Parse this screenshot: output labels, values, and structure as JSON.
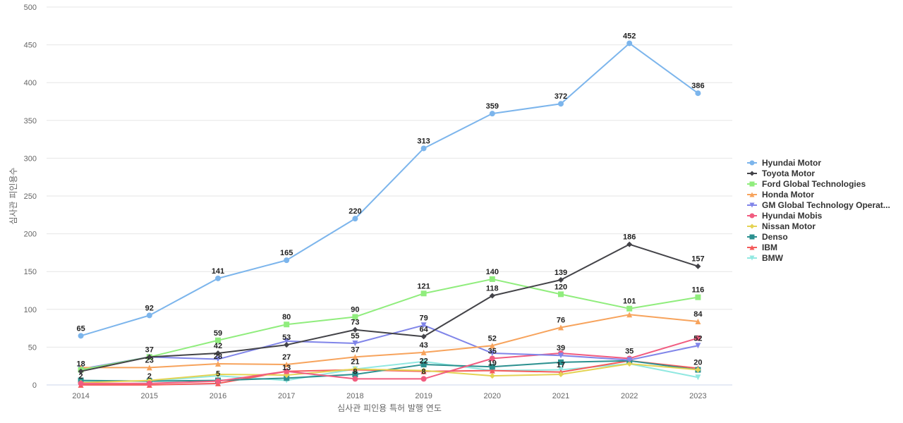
{
  "chart_data": {
    "type": "line",
    "title": "",
    "xlabel": "심사관 피인용 특허 발행 연도",
    "ylabel": "심사관 피인용수",
    "categories": [
      "2014",
      "2015",
      "2016",
      "2017",
      "2018",
      "2019",
      "2020",
      "2021",
      "2022",
      "2023"
    ],
    "ylim": [
      0,
      500
    ],
    "yticks": [
      0,
      50,
      100,
      150,
      200,
      250,
      300,
      350,
      400,
      450,
      500
    ],
    "grid": true,
    "legend_position": "right",
    "series": [
      {
        "name": "Hyundai Motor",
        "color": "#7cb5ec",
        "marker": "circle",
        "values": [
          65,
          92,
          141,
          165,
          220,
          313,
          359,
          372,
          452,
          386
        ],
        "labels": true
      },
      {
        "name": "Toyota Motor",
        "color": "#434348",
        "marker": "diamond",
        "values": [
          18,
          37,
          42,
          53,
          73,
          64,
          118,
          139,
          186,
          157
        ],
        "labels": true
      },
      {
        "name": "Ford Global Technologies",
        "color": "#90ed7d",
        "marker": "square",
        "values": [
          20,
          37,
          59,
          80,
          90,
          121,
          140,
          120,
          101,
          116
        ],
        "labels": true
      },
      {
        "name": "Honda Motor",
        "color": "#f7a35c",
        "marker": "triangle",
        "values": [
          23,
          23,
          28,
          27,
          37,
          43,
          52,
          76,
          93,
          84
        ],
        "labels": false
      },
      {
        "name": "GM Global Technology Operat...",
        "color": "#8085e9",
        "marker": "triangle-down",
        "values": [
          21,
          37,
          34,
          58,
          55,
          79,
          42,
          39,
          33,
          52
        ],
        "labels": false
      },
      {
        "name": "Hyundai Mobis",
        "color": "#f15c80",
        "marker": "circle",
        "values": [
          2,
          2,
          5,
          18,
          8,
          8,
          35,
          42,
          35,
          62
        ],
        "labels": false
      },
      {
        "name": "Nissan Motor",
        "color": "#e4d354",
        "marker": "diamond",
        "values": [
          3,
          6,
          14,
          13,
          21,
          19,
          12,
          14,
          28,
          20
        ],
        "labels": false
      },
      {
        "name": "Denso",
        "color": "#2b908f",
        "marker": "square",
        "values": [
          6,
          5,
          6,
          9,
          14,
          27,
          24,
          30,
          32,
          20
        ],
        "labels": false
      },
      {
        "name": "IBM",
        "color": "#f45b5b",
        "marker": "triangle",
        "values": [
          0,
          0,
          2,
          18,
          20,
          18,
          19,
          17,
          32,
          22
        ],
        "labels": false
      },
      {
        "name": "BMW",
        "color": "#91e8e1",
        "marker": "triangle-down",
        "values": [
          5,
          5,
          12,
          6,
          21,
          31,
          19,
          20,
          28,
          10
        ],
        "labels": false
      }
    ],
    "point_labels": [
      {
        "x": "2014",
        "value": 65
      },
      {
        "x": "2015",
        "value": 92
      },
      {
        "x": "2016",
        "value": 141
      },
      {
        "x": "2017",
        "value": 165
      },
      {
        "x": "2018",
        "value": 220
      },
      {
        "x": "2019",
        "value": 313
      },
      {
        "x": "2020",
        "value": 359
      },
      {
        "x": "2021",
        "value": 372
      },
      {
        "x": "2022",
        "value": 452
      },
      {
        "x": "2023",
        "value": 386
      },
      {
        "x": "2016",
        "value": 42
      },
      {
        "x": "2017",
        "value": 53
      },
      {
        "x": "2018",
        "value": 73
      },
      {
        "x": "2019",
        "value": 64
      },
      {
        "x": "2020",
        "value": 118
      },
      {
        "x": "2021",
        "value": 139
      },
      {
        "x": "2022",
        "value": 186
      },
      {
        "x": "2023",
        "value": 157
      },
      {
        "x": "2014",
        "value": 18
      },
      {
        "x": "2015",
        "value": 37
      },
      {
        "x": "2016",
        "value": 59
      },
      {
        "x": "2017",
        "value": 80
      },
      {
        "x": "2018",
        "value": 90
      },
      {
        "x": "2019",
        "value": 121
      },
      {
        "x": "2020",
        "value": 140
      },
      {
        "x": "2021",
        "value": 120
      },
      {
        "x": "2022",
        "value": 101
      },
      {
        "x": "2023",
        "value": 116
      },
      {
        "x": "2015",
        "value": 23
      },
      {
        "x": "2016",
        "value": 28
      },
      {
        "x": "2017",
        "value": 27
      },
      {
        "x": "2018",
        "value": 37
      },
      {
        "x": "2019",
        "value": 43
      },
      {
        "x": "2020",
        "value": 52
      },
      {
        "x": "2021",
        "value": 76
      },
      {
        "x": "2023",
        "value": 84
      },
      {
        "x": "2018",
        "value": 55
      },
      {
        "x": "2019",
        "value": 79
      },
      {
        "x": "2021",
        "value": 39
      },
      {
        "x": "2022",
        "value": 35
      },
      {
        "x": "2023",
        "value": 52
      },
      {
        "x": "2014",
        "value": 2
      },
      {
        "x": "2015",
        "value": 2
      },
      {
        "x": "2016",
        "value": 5
      },
      {
        "x": "2017",
        "value": 13
      },
      {
        "x": "2018",
        "value": 8
      },
      {
        "x": "2019",
        "value": 8
      },
      {
        "x": "2020",
        "value": 35
      },
      {
        "x": "2018",
        "value": 21
      },
      {
        "x": "2019",
        "value": 22
      },
      {
        "x": "2020",
        "value": 19
      },
      {
        "x": "2021",
        "value": 17
      },
      {
        "x": "2023",
        "value": 20
      }
    ]
  }
}
